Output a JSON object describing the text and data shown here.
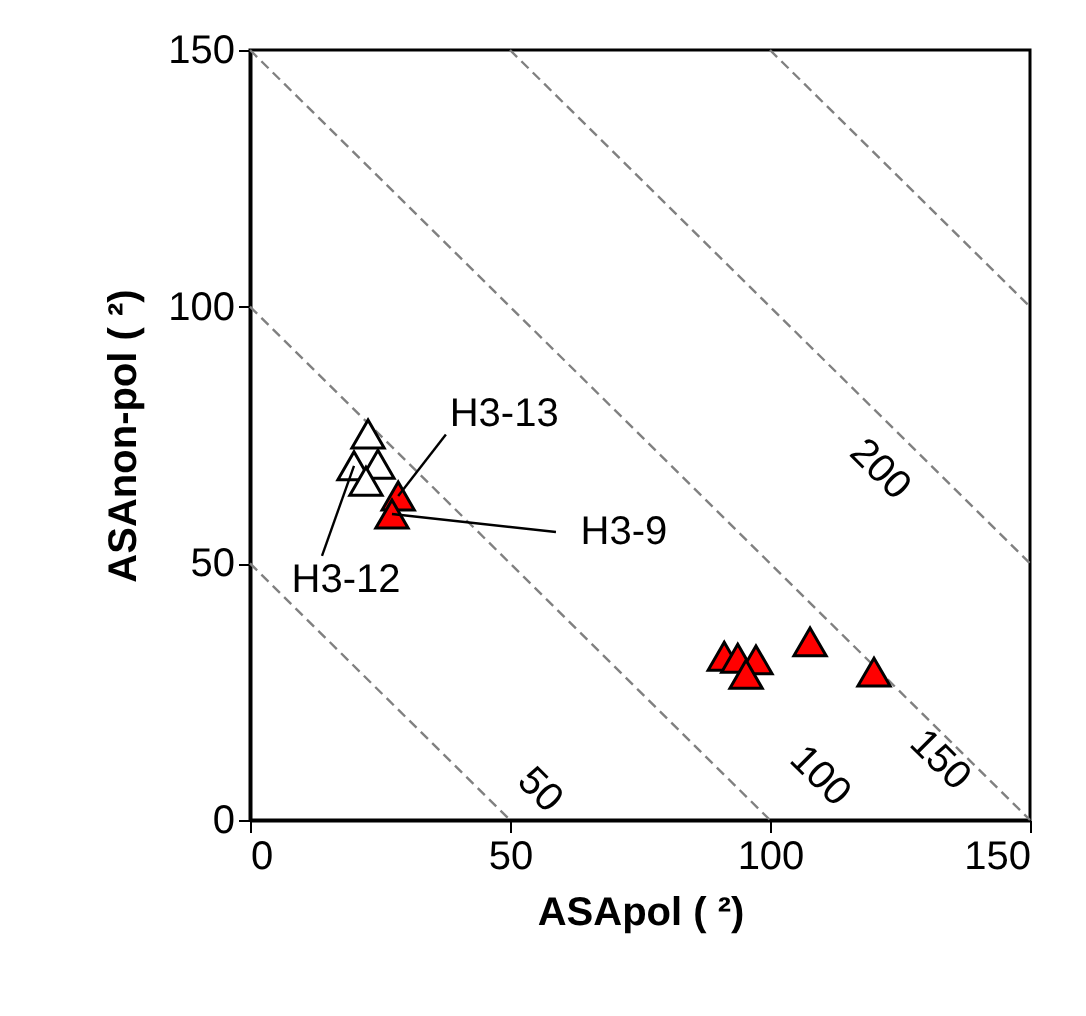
{
  "chart_data": {
    "type": "scatter",
    "xlabel": "ASApol ( ²)",
    "ylabel": "ASAnon-pol ( ²)",
    "xlim": [
      0,
      150
    ],
    "ylim": [
      0,
      150
    ],
    "xticks": [
      0,
      50,
      100,
      150
    ],
    "yticks": [
      0,
      50,
      100,
      150
    ],
    "grid": false,
    "series": [
      {
        "type": "line",
        "name": "50",
        "color": "#808080",
        "line_style": "dashed",
        "marker": "none",
        "x": [
          0,
          50
        ],
        "values": [
          50,
          0
        ]
      },
      {
        "type": "line",
        "name": "100",
        "color": "#808080",
        "line_style": "dashed",
        "marker": "none",
        "x": [
          0,
          100
        ],
        "values": [
          100,
          0
        ]
      },
      {
        "type": "line",
        "name": "150",
        "color": "#808080",
        "line_style": "dashed",
        "marker": "none",
        "x": [
          0,
          150
        ],
        "values": [
          150,
          0
        ]
      },
      {
        "type": "line",
        "name": "200",
        "color": "#808080",
        "line_style": "dashed",
        "marker": "none",
        "x": [
          50,
          150
        ],
        "values": [
          150,
          50
        ]
      },
      {
        "type": "line",
        "color": "#808080",
        "line_style": "dashed",
        "marker": "none",
        "x": [
          100,
          150
        ],
        "values": [
          150,
          100
        ]
      },
      {
        "color": "#ffffff",
        "marker": "triangle",
        "x": [
          22.7,
          24.6,
          20,
          22.3
        ],
        "values": [
          75.2,
          69.3,
          69,
          66
        ]
      },
      {
        "color": "#ff0000",
        "marker": "triangle",
        "x": [
          28.5,
          27.3,
          91.2,
          93.8,
          97.3,
          95.4,
          107.7,
          120
        ],
        "values": [
          63.1,
          59.6,
          31.9,
          31.5,
          31.2,
          28.4,
          34.7,
          28.8
        ]
      }
    ],
    "annotations": [
      {
        "text": "H3-13",
        "x": 28.5,
        "y": 63.1
      },
      {
        "text": "H3-9",
        "x": 27.3,
        "y": 59.6
      },
      {
        "text": "H3-12",
        "x": 20,
        "y": 69
      }
    ]
  }
}
